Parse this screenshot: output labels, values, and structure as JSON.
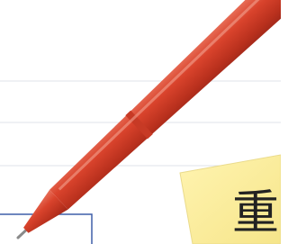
{
  "note": {
    "text": "重"
  }
}
